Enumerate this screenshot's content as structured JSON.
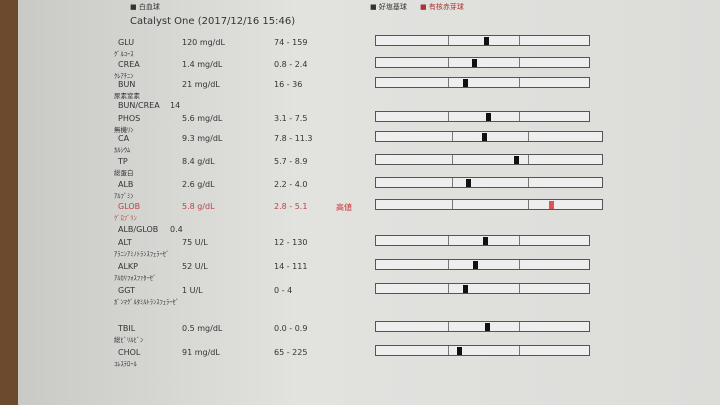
{
  "header": {
    "legend_left": "■ 白血球",
    "legend_right_1": "■ 好塩基球",
    "legend_right_2": "■ 有核赤芽球",
    "title": "Catalyst One (2017/12/16 15:46)"
  },
  "rows": [
    {
      "name": "GLU",
      "jp": "ｸﾞﾙｺｰｽ",
      "value": "120 mg/dL",
      "range": "74 - 159"
    },
    {
      "name": "CREA",
      "jp": "ｸﾚｱﾁﾆﾝ",
      "value": "1.4 mg/dL",
      "range": "0.8 - 2.4"
    },
    {
      "name": "BUN",
      "jp": "尿素窒素",
      "value": "21 mg/dL",
      "range": "16 - 36"
    },
    {
      "name": "BUN/CREA",
      "value": "14"
    },
    {
      "name": "PHOS",
      "jp": "無機ﾘﾝ",
      "value": "5.6 mg/dL",
      "range": "3.1 - 7.5"
    },
    {
      "name": "CA",
      "jp": "ｶﾙｼｳﾑ",
      "value": "9.3 mg/dL",
      "range": "7.8 - 11.3"
    },
    {
      "name": "TP",
      "jp": "総蛋白",
      "value": "8.4 g/dL",
      "range": "5.7 - 8.9"
    },
    {
      "name": "ALB",
      "jp": "ｱﾙﾌﾞﾐﾝ",
      "value": "2.6 g/dL",
      "range": "2.2 - 4.0"
    },
    {
      "name": "GLOB",
      "jp": "ｸﾞﾛﾌﾞﾘﾝ",
      "value": "5.8 g/dL",
      "range": "2.8 - 5.1",
      "flag": "高値"
    },
    {
      "name": "ALB/GLOB",
      "value": "0.4"
    },
    {
      "name": "ALT",
      "jp": "ｱﾗﾆﾝｱﾐﾉﾄﾗﾝｽﾌｪﾗｰｾﾞ",
      "value": "75 U/L",
      "range": "12 - 130"
    },
    {
      "name": "ALKP",
      "jp": "ｱﾙｶﾘﾌｫｽﾌｧﾀｰｾﾞ",
      "value": "52 U/L",
      "range": "14 - 111"
    },
    {
      "name": "GGT",
      "jp": "ｶﾞﾝﾏｸﾞﾙﾀﾐﾙﾄﾗﾝｽﾌｪﾗｰｾﾞ",
      "value": "1 U/L",
      "range": "0 - 4"
    },
    {
      "name": "TBIL",
      "jp": "総ﾋﾞﾘﾙﾋﾞﾝ",
      "value": "0.5 mg/dL",
      "range": "0.0 - 0.9"
    },
    {
      "name": "CHOL",
      "jp": "ｺﾚｽﾃﾛｰﾙ",
      "value": "91 mg/dL",
      "range": "65 - 225"
    }
  ]
}
